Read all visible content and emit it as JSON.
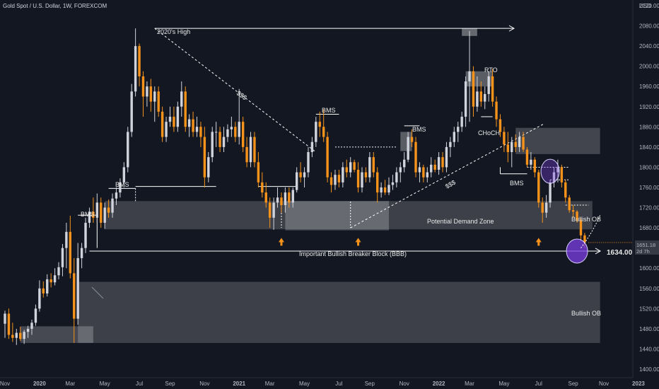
{
  "header": {
    "symbol_title": "Gold Spot / U.S. Dollar, 1W, FOREXCOM",
    "currency": "USD"
  },
  "colors": {
    "background": "#131722",
    "bull_candle": "#d1d4dc",
    "bear_candle": "#f7931a",
    "zone": "#ffffff",
    "circle": "#7b3fe4",
    "annotation": "#ffffff"
  },
  "chart_data": {
    "type": "candlestick",
    "title": "Gold Spot / U.S. Dollar, 1W, FOREXCOM",
    "ylabel": "USD",
    "ylim": [
      1390,
      2140
    ],
    "y_ticks": [
      2120,
      2080,
      2040,
      2000,
      1960,
      1920,
      1880,
      1840,
      1800,
      1760,
      1720,
      1680,
      1640,
      1600,
      1560,
      1520,
      1480,
      1440,
      1400
    ],
    "x_ticks": [
      "Nov",
      "2020",
      "Mar",
      "May",
      "Jul",
      "Sep",
      "Nov",
      "2021",
      "Mar",
      "May",
      "Jul",
      "Sep",
      "Nov",
      "2022",
      "Mar",
      "May",
      "Jul",
      "Sep",
      "Nov",
      "2023"
    ],
    "x_tick_weeks": [
      0,
      9,
      17,
      26,
      35,
      43,
      52,
      61,
      69,
      78,
      87,
      95,
      104,
      113,
      121,
      130,
      139,
      148,
      156,
      165
    ],
    "grid": false,
    "candles": [
      {
        "o": 1490,
        "h": 1516,
        "l": 1462,
        "c": 1510
      },
      {
        "o": 1510,
        "h": 1520,
        "l": 1460,
        "c": 1468
      },
      {
        "o": 1468,
        "h": 1492,
        "l": 1454,
        "c": 1462
      },
      {
        "o": 1462,
        "h": 1480,
        "l": 1448,
        "c": 1472
      },
      {
        "o": 1472,
        "h": 1484,
        "l": 1456,
        "c": 1460
      },
      {
        "o": 1460,
        "h": 1478,
        "l": 1450,
        "c": 1474
      },
      {
        "o": 1474,
        "h": 1486,
        "l": 1462,
        "c": 1480
      },
      {
        "o": 1480,
        "h": 1498,
        "l": 1468,
        "c": 1492
      },
      {
        "o": 1492,
        "h": 1528,
        "l": 1486,
        "c": 1520
      },
      {
        "o": 1520,
        "h": 1576,
        "l": 1514,
        "c": 1560
      },
      {
        "o": 1560,
        "h": 1574,
        "l": 1542,
        "c": 1550
      },
      {
        "o": 1550,
        "h": 1588,
        "l": 1544,
        "c": 1578
      },
      {
        "o": 1578,
        "h": 1590,
        "l": 1562,
        "c": 1572
      },
      {
        "o": 1572,
        "h": 1600,
        "l": 1566,
        "c": 1586
      },
      {
        "o": 1586,
        "h": 1612,
        "l": 1578,
        "c": 1602
      },
      {
        "o": 1602,
        "h": 1648,
        "l": 1584,
        "c": 1640
      },
      {
        "o": 1640,
        "h": 1690,
        "l": 1600,
        "c": 1672
      },
      {
        "o": 1672,
        "h": 1704,
        "l": 1580,
        "c": 1590
      },
      {
        "o": 1590,
        "h": 1620,
        "l": 1452,
        "c": 1500
      },
      {
        "o": 1500,
        "h": 1650,
        "l": 1488,
        "c": 1620
      },
      {
        "o": 1620,
        "h": 1650,
        "l": 1600,
        "c": 1640
      },
      {
        "o": 1640,
        "h": 1700,
        "l": 1630,
        "c": 1690
      },
      {
        "o": 1690,
        "h": 1720,
        "l": 1680,
        "c": 1712
      },
      {
        "o": 1712,
        "h": 1740,
        "l": 1690,
        "c": 1700
      },
      {
        "o": 1700,
        "h": 1748,
        "l": 1690,
        "c": 1730
      },
      {
        "o": 1730,
        "h": 1740,
        "l": 1680,
        "c": 1690
      },
      {
        "o": 1690,
        "h": 1730,
        "l": 1678,
        "c": 1720
      },
      {
        "o": 1720,
        "h": 1736,
        "l": 1700,
        "c": 1710
      },
      {
        "o": 1710,
        "h": 1748,
        "l": 1700,
        "c": 1738
      },
      {
        "o": 1738,
        "h": 1760,
        "l": 1725,
        "c": 1750
      },
      {
        "o": 1750,
        "h": 1778,
        "l": 1740,
        "c": 1770
      },
      {
        "o": 1770,
        "h": 1810,
        "l": 1760,
        "c": 1800
      },
      {
        "o": 1800,
        "h": 1880,
        "l": 1790,
        "c": 1870
      },
      {
        "o": 1870,
        "h": 1965,
        "l": 1860,
        "c": 1950
      },
      {
        "o": 1950,
        "h": 2075,
        "l": 1940,
        "c": 2040
      },
      {
        "o": 2040,
        "h": 2045,
        "l": 1960,
        "c": 1980
      },
      {
        "o": 1980,
        "h": 1990,
        "l": 1900,
        "c": 1940
      },
      {
        "o": 1940,
        "h": 1970,
        "l": 1920,
        "c": 1960
      },
      {
        "o": 1960,
        "h": 1975,
        "l": 1910,
        "c": 1930
      },
      {
        "o": 1930,
        "h": 1960,
        "l": 1890,
        "c": 1950
      },
      {
        "o": 1950,
        "h": 1960,
        "l": 1900,
        "c": 1910
      },
      {
        "o": 1910,
        "h": 1920,
        "l": 1850,
        "c": 1860
      },
      {
        "o": 1860,
        "h": 1900,
        "l": 1850,
        "c": 1890
      },
      {
        "o": 1890,
        "h": 1920,
        "l": 1880,
        "c": 1900
      },
      {
        "o": 1900,
        "h": 1920,
        "l": 1870,
        "c": 1880
      },
      {
        "o": 1880,
        "h": 1930,
        "l": 1870,
        "c": 1920
      },
      {
        "o": 1920,
        "h": 1970,
        "l": 1900,
        "c": 1950
      },
      {
        "o": 1950,
        "h": 1960,
        "l": 1870,
        "c": 1880
      },
      {
        "o": 1880,
        "h": 1905,
        "l": 1860,
        "c": 1895
      },
      {
        "o": 1895,
        "h": 1910,
        "l": 1860,
        "c": 1870
      },
      {
        "o": 1870,
        "h": 1900,
        "l": 1860,
        "c": 1880
      },
      {
        "o": 1880,
        "h": 1890,
        "l": 1840,
        "c": 1860
      },
      {
        "o": 1860,
        "h": 1880,
        "l": 1760,
        "c": 1780
      },
      {
        "o": 1780,
        "h": 1830,
        "l": 1770,
        "c": 1820
      },
      {
        "o": 1820,
        "h": 1880,
        "l": 1810,
        "c": 1870
      },
      {
        "o": 1870,
        "h": 1890,
        "l": 1840,
        "c": 1870
      },
      {
        "o": 1870,
        "h": 1880,
        "l": 1830,
        "c": 1840
      },
      {
        "o": 1840,
        "h": 1880,
        "l": 1830,
        "c": 1860
      },
      {
        "o": 1860,
        "h": 1885,
        "l": 1850,
        "c": 1875
      },
      {
        "o": 1875,
        "h": 1900,
        "l": 1860,
        "c": 1880
      },
      {
        "o": 1880,
        "h": 1890,
        "l": 1850,
        "c": 1860
      },
      {
        "o": 1860,
        "h": 1955,
        "l": 1845,
        "c": 1890
      },
      {
        "o": 1890,
        "h": 1900,
        "l": 1830,
        "c": 1840
      },
      {
        "o": 1840,
        "h": 1860,
        "l": 1800,
        "c": 1810
      },
      {
        "o": 1810,
        "h": 1870,
        "l": 1800,
        "c": 1860
      },
      {
        "o": 1860,
        "h": 1870,
        "l": 1800,
        "c": 1810
      },
      {
        "o": 1810,
        "h": 1830,
        "l": 1760,
        "c": 1770
      },
      {
        "o": 1770,
        "h": 1790,
        "l": 1740,
        "c": 1750
      },
      {
        "o": 1750,
        "h": 1770,
        "l": 1720,
        "c": 1730
      },
      {
        "o": 1730,
        "h": 1740,
        "l": 1680,
        "c": 1700
      },
      {
        "o": 1700,
        "h": 1740,
        "l": 1676,
        "c": 1730
      },
      {
        "o": 1730,
        "h": 1760,
        "l": 1720,
        "c": 1740
      },
      {
        "o": 1740,
        "h": 1750,
        "l": 1710,
        "c": 1725
      },
      {
        "o": 1725,
        "h": 1760,
        "l": 1710,
        "c": 1750
      },
      {
        "o": 1750,
        "h": 1760,
        "l": 1720,
        "c": 1730
      },
      {
        "o": 1730,
        "h": 1760,
        "l": 1720,
        "c": 1755
      },
      {
        "o": 1755,
        "h": 1800,
        "l": 1750,
        "c": 1790
      },
      {
        "o": 1790,
        "h": 1810,
        "l": 1770,
        "c": 1780
      },
      {
        "o": 1780,
        "h": 1800,
        "l": 1760,
        "c": 1790
      },
      {
        "o": 1790,
        "h": 1840,
        "l": 1780,
        "c": 1830
      },
      {
        "o": 1830,
        "h": 1860,
        "l": 1820,
        "c": 1850
      },
      {
        "o": 1850,
        "h": 1900,
        "l": 1840,
        "c": 1890
      },
      {
        "o": 1890,
        "h": 1910,
        "l": 1860,
        "c": 1880
      },
      {
        "o": 1880,
        "h": 1915,
        "l": 1850,
        "c": 1860
      },
      {
        "o": 1860,
        "h": 1870,
        "l": 1770,
        "c": 1780
      },
      {
        "o": 1780,
        "h": 1790,
        "l": 1750,
        "c": 1765
      },
      {
        "o": 1765,
        "h": 1795,
        "l": 1755,
        "c": 1785
      },
      {
        "o": 1785,
        "h": 1795,
        "l": 1760,
        "c": 1770
      },
      {
        "o": 1770,
        "h": 1810,
        "l": 1760,
        "c": 1800
      },
      {
        "o": 1800,
        "h": 1815,
        "l": 1780,
        "c": 1790
      },
      {
        "o": 1790,
        "h": 1820,
        "l": 1780,
        "c": 1810
      },
      {
        "o": 1810,
        "h": 1815,
        "l": 1790,
        "c": 1795
      },
      {
        "o": 1795,
        "h": 1810,
        "l": 1750,
        "c": 1760
      },
      {
        "o": 1760,
        "h": 1800,
        "l": 1750,
        "c": 1790
      },
      {
        "o": 1790,
        "h": 1800,
        "l": 1770,
        "c": 1780
      },
      {
        "o": 1780,
        "h": 1830,
        "l": 1770,
        "c": 1820
      },
      {
        "o": 1820,
        "h": 1830,
        "l": 1780,
        "c": 1790
      },
      {
        "o": 1790,
        "h": 1800,
        "l": 1730,
        "c": 1750
      },
      {
        "o": 1750,
        "h": 1770,
        "l": 1740,
        "c": 1760
      },
      {
        "o": 1760,
        "h": 1775,
        "l": 1745,
        "c": 1750
      },
      {
        "o": 1750,
        "h": 1780,
        "l": 1745,
        "c": 1765
      },
      {
        "o": 1765,
        "h": 1785,
        "l": 1755,
        "c": 1770
      },
      {
        "o": 1770,
        "h": 1800,
        "l": 1760,
        "c": 1790
      },
      {
        "o": 1790,
        "h": 1810,
        "l": 1770,
        "c": 1800
      },
      {
        "o": 1800,
        "h": 1830,
        "l": 1790,
        "c": 1815
      },
      {
        "o": 1815,
        "h": 1870,
        "l": 1810,
        "c": 1860
      },
      {
        "o": 1860,
        "h": 1875,
        "l": 1840,
        "c": 1850
      },
      {
        "o": 1850,
        "h": 1860,
        "l": 1780,
        "c": 1790
      },
      {
        "o": 1790,
        "h": 1810,
        "l": 1770,
        "c": 1800
      },
      {
        "o": 1800,
        "h": 1805,
        "l": 1770,
        "c": 1780
      },
      {
        "o": 1780,
        "h": 1800,
        "l": 1770,
        "c": 1790
      },
      {
        "o": 1790,
        "h": 1820,
        "l": 1780,
        "c": 1805
      },
      {
        "o": 1805,
        "h": 1815,
        "l": 1790,
        "c": 1795
      },
      {
        "o": 1795,
        "h": 1830,
        "l": 1785,
        "c": 1820
      },
      {
        "o": 1820,
        "h": 1830,
        "l": 1790,
        "c": 1800
      },
      {
        "o": 1800,
        "h": 1850,
        "l": 1790,
        "c": 1840
      },
      {
        "o": 1840,
        "h": 1860,
        "l": 1820,
        "c": 1850
      },
      {
        "o": 1850,
        "h": 1880,
        "l": 1840,
        "c": 1870
      },
      {
        "o": 1870,
        "h": 1890,
        "l": 1850,
        "c": 1880
      },
      {
        "o": 1880,
        "h": 1910,
        "l": 1870,
        "c": 1900
      },
      {
        "o": 1900,
        "h": 1980,
        "l": 1880,
        "c": 1970
      },
      {
        "o": 1970,
        "h": 2070,
        "l": 1890,
        "c": 1990
      },
      {
        "o": 1990,
        "h": 2000,
        "l": 1900,
        "c": 1920
      },
      {
        "o": 1920,
        "h": 1980,
        "l": 1910,
        "c": 1950
      },
      {
        "o": 1950,
        "h": 1970,
        "l": 1920,
        "c": 1930
      },
      {
        "o": 1930,
        "h": 1960,
        "l": 1915,
        "c": 1945
      },
      {
        "o": 1945,
        "h": 1990,
        "l": 1930,
        "c": 1980
      },
      {
        "o": 1980,
        "h": 1995,
        "l": 1920,
        "c": 1930
      },
      {
        "o": 1930,
        "h": 1940,
        "l": 1880,
        "c": 1895
      },
      {
        "o": 1895,
        "h": 1905,
        "l": 1860,
        "c": 1870
      },
      {
        "o": 1870,
        "h": 1880,
        "l": 1830,
        "c": 1845
      },
      {
        "o": 1845,
        "h": 1870,
        "l": 1810,
        "c": 1830
      },
      {
        "o": 1830,
        "h": 1860,
        "l": 1800,
        "c": 1850
      },
      {
        "o": 1850,
        "h": 1865,
        "l": 1830,
        "c": 1840
      },
      {
        "o": 1840,
        "h": 1870,
        "l": 1830,
        "c": 1860
      },
      {
        "o": 1860,
        "h": 1870,
        "l": 1830,
        "c": 1835
      },
      {
        "o": 1835,
        "h": 1840,
        "l": 1800,
        "c": 1805
      },
      {
        "o": 1805,
        "h": 1830,
        "l": 1795,
        "c": 1815
      },
      {
        "o": 1815,
        "h": 1820,
        "l": 1780,
        "c": 1790
      },
      {
        "o": 1790,
        "h": 1795,
        "l": 1720,
        "c": 1730
      },
      {
        "o": 1730,
        "h": 1740,
        "l": 1690,
        "c": 1710
      },
      {
        "o": 1710,
        "h": 1745,
        "l": 1700,
        "c": 1730
      },
      {
        "o": 1730,
        "h": 1775,
        "l": 1720,
        "c": 1770
      },
      {
        "o": 1770,
        "h": 1800,
        "l": 1760,
        "c": 1790
      },
      {
        "o": 1790,
        "h": 1815,
        "l": 1770,
        "c": 1800
      },
      {
        "o": 1800,
        "h": 1805,
        "l": 1760,
        "c": 1770
      },
      {
        "o": 1770,
        "h": 1775,
        "l": 1730,
        "c": 1740
      },
      {
        "o": 1740,
        "h": 1745,
        "l": 1710,
        "c": 1715
      },
      {
        "o": 1715,
        "h": 1725,
        "l": 1700,
        "c": 1712
      },
      {
        "o": 1712,
        "h": 1715,
        "l": 1690,
        "c": 1695
      },
      {
        "o": 1695,
        "h": 1700,
        "l": 1655,
        "c": 1665
      },
      {
        "o": 1665,
        "h": 1670,
        "l": 1640,
        "c": 1651
      }
    ],
    "annotations": {
      "high_label": "2020's High",
      "rto_label": "RTO",
      "choch_label": "CHoCH",
      "bms_labels": [
        "BMS",
        "BMS",
        "BMS",
        "BMS",
        "BMS"
      ],
      "liquidity_labels": [
        "$$$",
        "$$$"
      ],
      "zone_labels": {
        "demand": "Potential Demand Zone",
        "bbb": "Important Bullish Breaker Block (BBB)",
        "ob_upper": "Bullish OB",
        "ob_lower": "Bullish OB"
      },
      "target_price": "1634.00"
    },
    "price_tag": {
      "price": "1651.18",
      "countdown": "2d 7h"
    }
  }
}
